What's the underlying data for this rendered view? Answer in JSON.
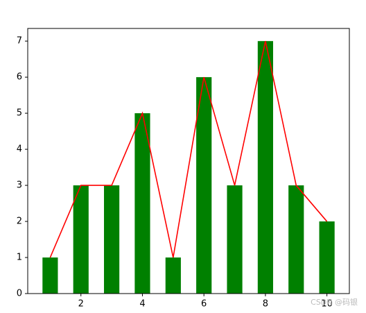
{
  "chart_data": {
    "type": "bar",
    "x": [
      1,
      2,
      3,
      4,
      5,
      6,
      7,
      8,
      9,
      10
    ],
    "series": [
      {
        "type": "bar",
        "color": "#008000",
        "values": [
          1,
          3,
          3,
          5,
          1,
          6,
          3,
          7,
          3,
          2
        ]
      },
      {
        "type": "line",
        "color": "#ff0000",
        "values": [
          1,
          3,
          3,
          5,
          1,
          6,
          3,
          7,
          3,
          2
        ]
      }
    ],
    "xlim": [
      0.27,
      10.73
    ],
    "xticks": [
      2,
      4,
      6,
      8,
      10
    ],
    "ylim": [
      0,
      7.35
    ],
    "yticks": [
      0,
      1,
      2,
      3,
      4,
      5,
      6,
      7
    ],
    "watermark": "CSDN @码银"
  }
}
